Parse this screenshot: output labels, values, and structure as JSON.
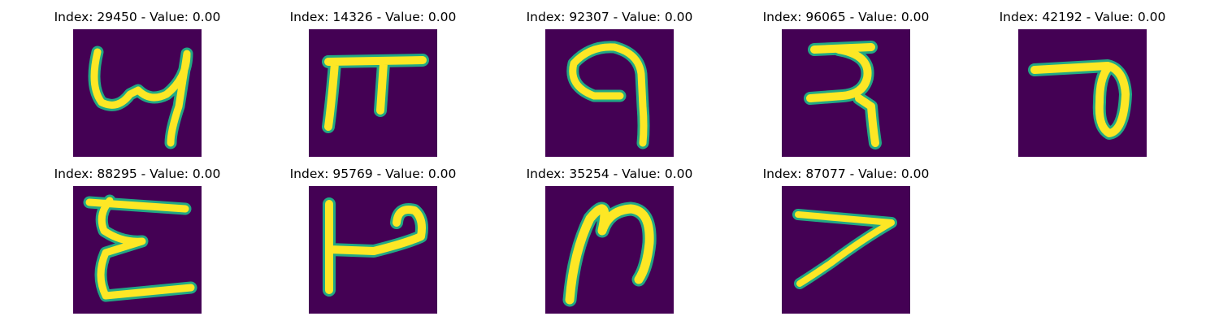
{
  "figure": {
    "panels": [
      {
        "title": "Index: 29450 - Value: 0.00",
        "index": 29450,
        "value": 0.0
      },
      {
        "title": "Index: 14326 - Value: 0.00",
        "index": 14326,
        "value": 0.0
      },
      {
        "title": "Index: 92307 - Value: 0.00",
        "index": 92307,
        "value": 0.0
      },
      {
        "title": "Index: 96065 - Value: 0.00",
        "index": 96065,
        "value": 0.0
      },
      {
        "title": "Index: 42192 - Value: 0.00",
        "index": 42192,
        "value": 0.0
      },
      {
        "title": "Index: 88295 - Value: 0.00",
        "index": 88295,
        "value": 0.0
      },
      {
        "title": "Index: 95769 - Value: 0.00",
        "index": 95769,
        "value": 0.0
      },
      {
        "title": "Index: 35254 - Value: 0.00",
        "index": 35254,
        "value": 0.0
      },
      {
        "title": "Index: 87077 - Value: 0.00",
        "index": 87077,
        "value": 0.0
      }
    ],
    "colors": {
      "background": "#440154",
      "stroke_edge": "#22a884",
      "stroke_core": "#fde725"
    }
  }
}
